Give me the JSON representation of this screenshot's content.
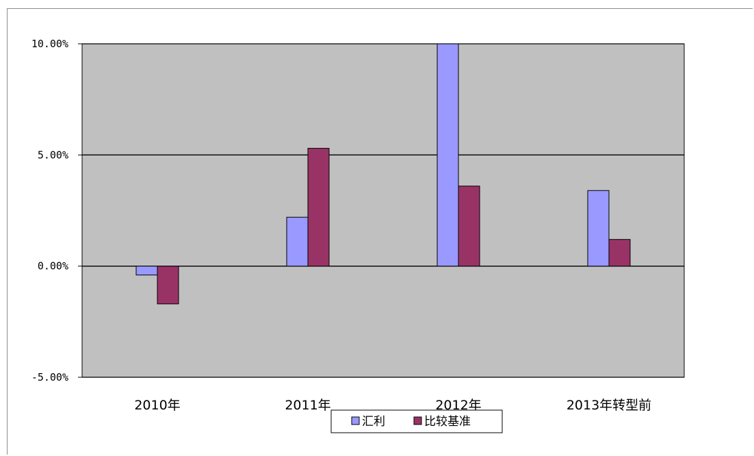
{
  "chart_data": {
    "type": "bar",
    "title": "",
    "xlabel": "",
    "ylabel": "",
    "categories": [
      "2010年",
      "2011年",
      "2012年",
      "2013年转型前"
    ],
    "series": [
      {
        "name": "汇利",
        "color": "#9999ff",
        "values": [
          -0.4,
          2.2,
          10.0,
          3.4
        ]
      },
      {
        "name": "比较基准",
        "color": "#993366",
        "values": [
          -1.7,
          5.3,
          3.6,
          1.2
        ]
      }
    ],
    "ylim": [
      -5,
      10
    ],
    "yticks": [
      -5,
      0,
      5,
      10
    ],
    "ytick_labels": [
      "-5.00%",
      "0.00%",
      "5.00%",
      "10.00%"
    ],
    "grid": true,
    "plot_background": "#c0c0c0",
    "legend_position": "bottom"
  }
}
